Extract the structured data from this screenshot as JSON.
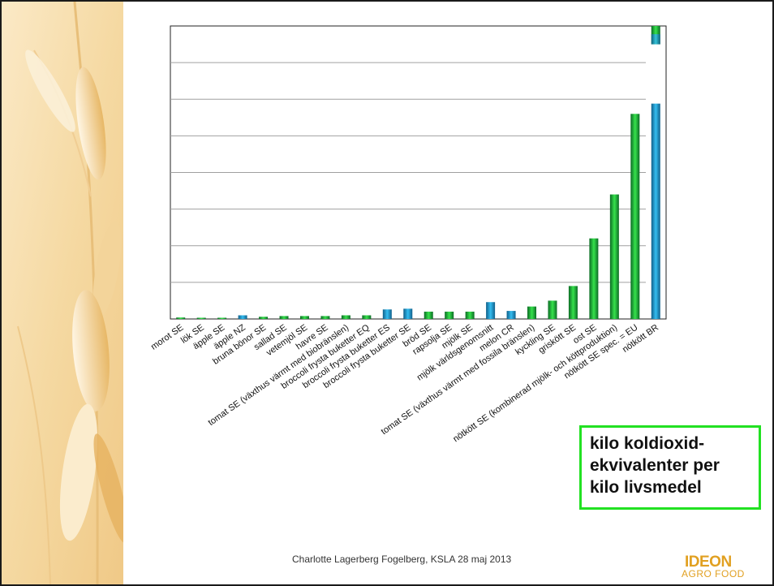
{
  "slide": {
    "legend_lines": [
      "kilo koldioxid-",
      "ekvivalenter per",
      "kilo livsmedel"
    ],
    "footer": "Charlotte Lagerberg Fogelberg, KSLA 28 maj 2013",
    "logo": {
      "top": "IDEON",
      "bottom": "AGRO FOOD"
    }
  },
  "chart_data": {
    "type": "bar",
    "title": "",
    "xlabel": "",
    "ylabel": "",
    "ylim": [
      0,
      40
    ],
    "grid": true,
    "colors": {
      "green": "#22c02d",
      "blue": "#1e9bd4"
    },
    "categories": [
      "morot SE",
      "lök SE",
      "äpple SE",
      "äpple NZ",
      "bruna bönor SE",
      "sallad SE",
      "vetemjöl SE",
      "havre SE",
      "tomat SE (växthus värmt med biobränslen)",
      "broccoli frysta buketter EQ",
      "broccoli frysta buketter ES",
      "broccoli frysta buketter SE",
      "bröd SE",
      "rapsolja SE",
      "mjölk SE",
      "mjölk världsgenomsnitt",
      "melon CR",
      "tomat SE (växthus värmt med fossila bränslen)",
      "kyckling SE",
      "griskött SE",
      "ost SE",
      "nötkött SE (kombinerad mjölk- och köttproduktion)",
      "nötkött SE spec. = EU",
      "nötkött BR"
    ],
    "values": [
      0.2,
      0.1,
      0.1,
      0.5,
      0.3,
      0.4,
      0.4,
      0.4,
      0.5,
      0.5,
      1.3,
      1.4,
      1.0,
      1.0,
      1.0,
      2.3,
      1.1,
      1.7,
      2.5,
      4.5,
      11.0,
      17.0,
      28.0,
      29.4
    ],
    "extra_segment": {
      "category": "nötkött BR",
      "from": 37.5,
      "to": 40.0
    },
    "bar_colors": [
      "green",
      "green",
      "green",
      "blue",
      "green",
      "green",
      "green",
      "green",
      "green",
      "green",
      "blue",
      "blue",
      "green",
      "green",
      "green",
      "blue",
      "blue",
      "green",
      "green",
      "green",
      "green",
      "green",
      "green",
      "blue"
    ]
  }
}
